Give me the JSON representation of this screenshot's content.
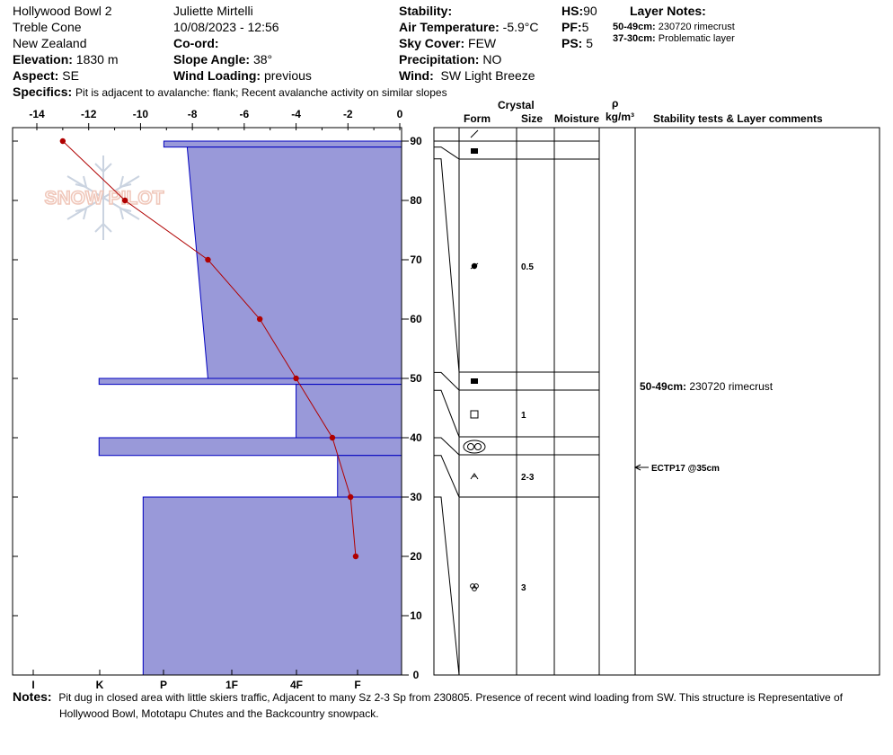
{
  "header": {
    "location": "Hollywood Bowl 2",
    "area": "Treble Cone",
    "country": "New Zealand",
    "elevation_label": "Elevation:",
    "elevation": "1830 m",
    "aspect_label": "Aspect:",
    "aspect": "SE",
    "observer": "Juliette Mirtelli",
    "datetime": "10/08/2023 - 12:56",
    "coord_label": "Co-ord:",
    "slope_label": "Slope Angle:",
    "slope": "38°",
    "wind_loading_label": "Wind Loading:",
    "wind_loading": "previous",
    "stability_label": "Stability:",
    "air_temp_label": "Air Temperature:",
    "air_temp": "-5.9°C",
    "sky_label": "Sky Cover:",
    "sky": "FEW",
    "precip_label": "Precipitation:",
    "precip": "NO",
    "wind_label": "Wind:",
    "wind": "SW Light Breeze",
    "hs_label": "HS:",
    "hs": "90",
    "pf_label": "PF:",
    "pf": "5",
    "ps_label": "PS:",
    "ps": "5",
    "layer_notes_label": "Layer Notes:",
    "layer_note_1_depth": "50-49cm:",
    "layer_note_1_text": "230720 rimecrust",
    "layer_note_2_depth": "37-30cm:",
    "layer_note_2_text": "Problematic layer",
    "specifics_label": "Specifics:",
    "specifics": "Pit is adjacent to avalanche: flank; Recent avalanche activity on similar slopes"
  },
  "logo_text": "SNOW PILOT",
  "table_headers": {
    "crystal": "Crystal",
    "form": "Form",
    "size": "Size",
    "moisture": "Moisture",
    "rho": "ρ",
    "density_unit": "kg/m³",
    "comments": "Stability tests & Layer comments"
  },
  "layer_comment_1_depth": "50-49cm:",
  "layer_comment_1_text": "230720 rimecrust",
  "test_result": "ECTP17 @35cm",
  "notes_label": "Notes:",
  "notes_line1": "Pit dug in closed area with little skiers traffic, Adjacent to many Sz 2-3 Sp from 230805. Presence of recent wind loading from SW. This structure is Representative of",
  "notes_line2": "Hollywood Bowl, Mototapu Chutes and the Backcountry snowpack.",
  "colors": {
    "hardness_fill": "#9999d9",
    "hardness_edge": "#0000c0",
    "temperature": "#b00000"
  },
  "chart_data": {
    "type": "snow-profile",
    "temp_axis": {
      "min": -15,
      "max": 0,
      "ticks": [
        "-14",
        "-12",
        "-10",
        "-8",
        "-6",
        "-4",
        "-2",
        "0"
      ]
    },
    "depth_axis": {
      "min": 0,
      "max": 90,
      "ticks": [
        "0",
        "10",
        "20",
        "30",
        "40",
        "50",
        "60",
        "70",
        "80",
        "90"
      ]
    },
    "hardness_axis": {
      "ticks": [
        "I",
        "K",
        "P",
        "1F",
        "4F",
        "F"
      ]
    },
    "temperature_profile": [
      {
        "depth": 90,
        "temp": -13.0
      },
      {
        "depth": 80,
        "temp": -10.6
      },
      {
        "depth": 70,
        "temp": -7.4
      },
      {
        "depth": 60,
        "temp": -5.4
      },
      {
        "depth": 50,
        "temp": -4.0
      },
      {
        "depth": 40,
        "temp": -2.6
      },
      {
        "depth": 30,
        "temp": -1.9
      },
      {
        "depth": 20,
        "temp": -1.7
      }
    ],
    "hardness_layers": [
      {
        "top": 90,
        "bottom": 89,
        "temp_left": -9.1
      },
      {
        "top": 89,
        "bottom": 50,
        "temp_left_top": -8.2,
        "temp_left_bottom": -7.4
      },
      {
        "top": 50,
        "bottom": 49,
        "temp_left": -11.6
      },
      {
        "top": 49,
        "bottom": 40,
        "temp_left": -4.0
      },
      {
        "top": 40,
        "bottom": 37,
        "temp_left": -11.6
      },
      {
        "top": 37,
        "bottom": 30,
        "temp_left": -2.4
      },
      {
        "top": 30,
        "bottom": 0,
        "temp_left": -9.9
      }
    ],
    "grain_layers": [
      {
        "top": 90,
        "bottom": 89,
        "form": "decomposing",
        "size": ""
      },
      {
        "top": 89,
        "bottom": 87,
        "form": "melt-freeze crust",
        "size": ""
      },
      {
        "top": 87,
        "bottom": 51,
        "form": "rounding facet",
        "size": "0.5"
      },
      {
        "top": 51,
        "bottom": 48,
        "form": "melt-freeze crust",
        "size": ""
      },
      {
        "top": 48,
        "bottom": 40,
        "form": "faceted",
        "size": "1"
      },
      {
        "top": 40,
        "bottom": 37,
        "form": "clustered rounded",
        "size": ""
      },
      {
        "top": 37,
        "bottom": 30,
        "form": "depth hoar",
        "size": "2-3"
      },
      {
        "top": 30,
        "bottom": 0,
        "form": "melt forms",
        "size": "3"
      }
    ],
    "test_depth": 35,
    "layer_comment_depth": 49.5
  }
}
